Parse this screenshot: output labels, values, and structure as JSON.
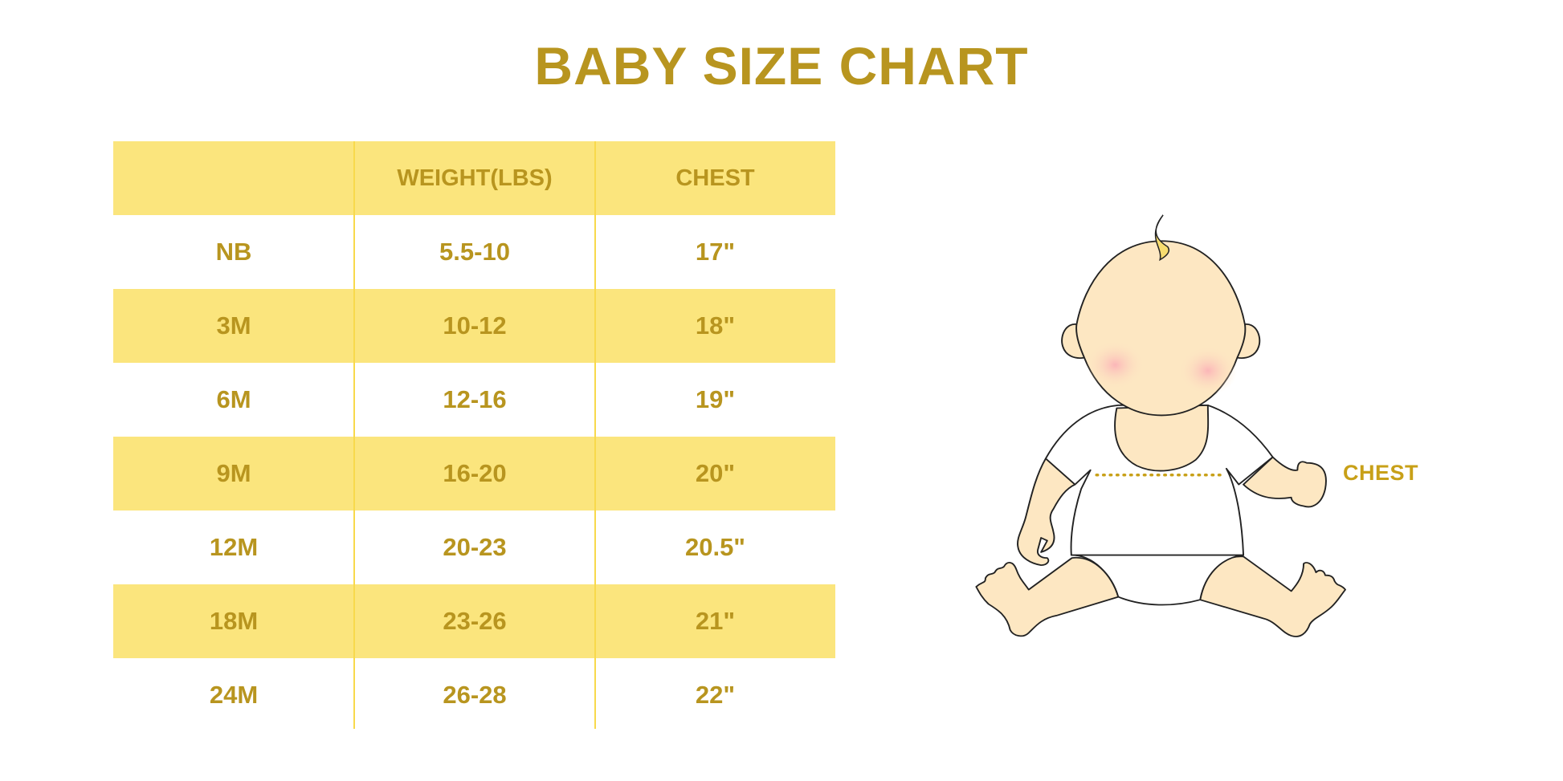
{
  "title": "BABY SIZE CHART",
  "table": {
    "headers": [
      "",
      "WEIGHT(LBS)",
      "CHEST"
    ],
    "rows": [
      [
        "NB",
        "5.5-10",
        "17\""
      ],
      [
        "3M",
        "10-12",
        "18\""
      ],
      [
        "6M",
        "12-16",
        "19\""
      ],
      [
        "9M",
        "16-20",
        "20\""
      ],
      [
        "12M",
        "20-23",
        "20.5\""
      ],
      [
        "18M",
        "23-26",
        "21\""
      ],
      [
        "24M",
        "26-28",
        "22\""
      ]
    ]
  },
  "illustration": {
    "chest_label": "CHEST"
  },
  "colors": {
    "text": "#b8951f",
    "band": "#fbe57d",
    "divider": "#f8d94c",
    "skin": "#fde7c2",
    "hair": "#f7dc6f"
  }
}
